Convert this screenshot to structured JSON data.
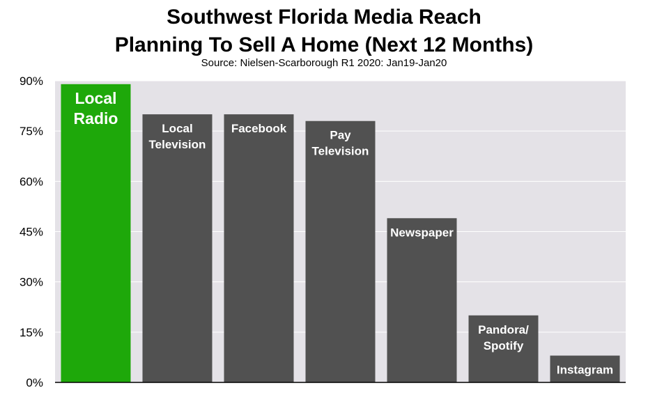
{
  "chart_data": {
    "type": "bar",
    "title": "Southwest Florida Media Reach",
    "subtitle_line": "Planning To Sell A Home (Next 12 Months)",
    "source": "Source: Nielsen-Scarborough R1 2020: Jan19-Jan20",
    "categories": [
      [
        "Local",
        "Radio"
      ],
      [
        "Local",
        "Television"
      ],
      [
        "Facebook"
      ],
      [
        "Pay",
        "Television"
      ],
      [
        "Newspaper"
      ],
      [
        "Pandora/",
        "Spotify"
      ],
      [
        "Instagram"
      ]
    ],
    "values": [
      89,
      80,
      80,
      78,
      49,
      20,
      8
    ],
    "ylim": [
      0,
      90
    ],
    "yticks": [
      0,
      15,
      30,
      45,
      60,
      75,
      90
    ],
    "ytick_labels": [
      "0%",
      "15%",
      "30%",
      "45%",
      "60%",
      "75%",
      "90%"
    ],
    "grid": true,
    "colors": {
      "highlight": "#1ea80a",
      "bar": "#515151",
      "plot_bg": "#e4e2e7",
      "grid": "#ffffff"
    }
  }
}
